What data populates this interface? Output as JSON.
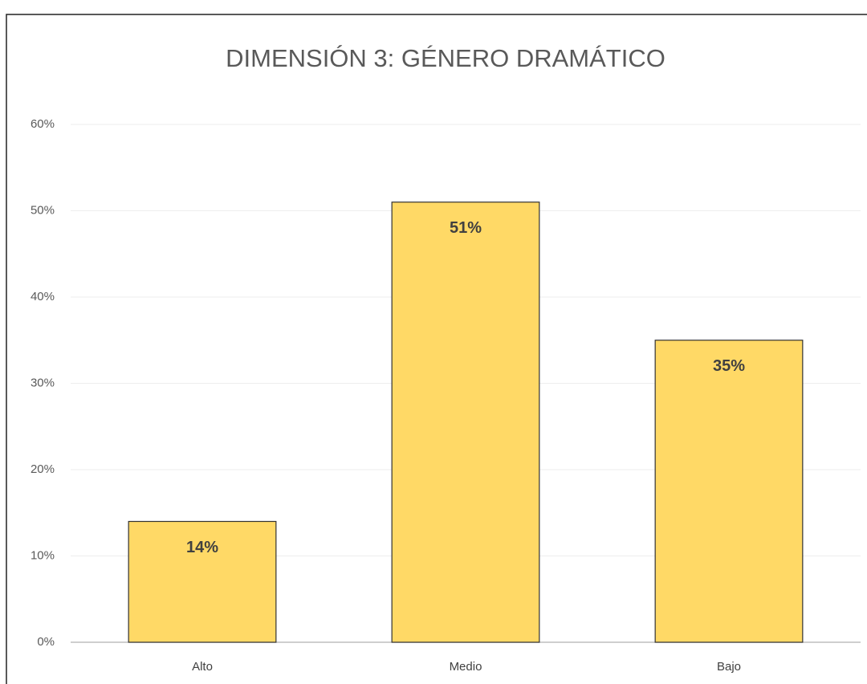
{
  "chart_data": {
    "type": "bar",
    "title": "DIMENSIÓN 3: GÉNERO DRAMÁTICO",
    "categories": [
      "Alto",
      "Medio",
      "Bajo"
    ],
    "values": [
      14,
      51,
      35
    ],
    "value_labels": [
      "14%",
      "51%",
      "35%"
    ],
    "color": "#ffd966",
    "ylim": [
      0,
      60
    ],
    "yticks": [
      {
        "value": 0,
        "label": "0%"
      },
      {
        "value": 10,
        "label": "10%"
      },
      {
        "value": 20,
        "label": "20%"
      },
      {
        "value": 30,
        "label": "30%"
      },
      {
        "value": 40,
        "label": "40%"
      },
      {
        "value": 50,
        "label": "50%"
      },
      {
        "value": 60,
        "label": "60%"
      }
    ],
    "grid": true
  }
}
